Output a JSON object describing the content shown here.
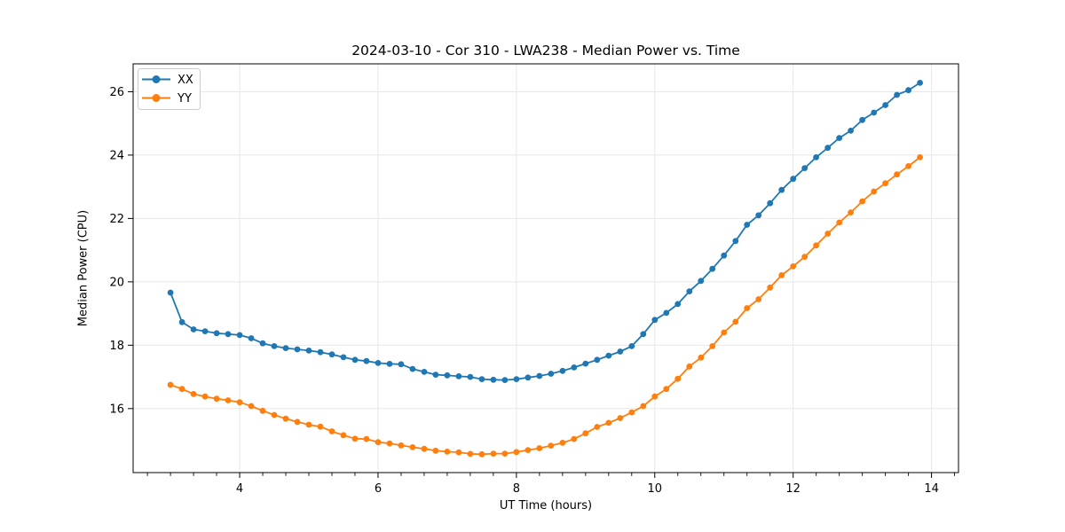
{
  "chart_data": {
    "type": "line",
    "title": "2024-03-10 - Cor 310 - LWA238 - Median Power vs. Time",
    "xlabel": "UT Time (hours)",
    "ylabel": "Median Power (CPU)",
    "xlim": [
      2.46,
      14.39
    ],
    "ylim": [
      13.98,
      26.88
    ],
    "xticks": [
      4,
      6,
      8,
      10,
      12,
      14
    ],
    "yticks": [
      16,
      18,
      20,
      22,
      24,
      26
    ],
    "x_minor_step": 0.33333,
    "grid": true,
    "legend_position": "upper left",
    "x": [
      3.0,
      3.167,
      3.333,
      3.5,
      3.667,
      3.833,
      4.0,
      4.167,
      4.333,
      4.5,
      4.667,
      4.833,
      5.0,
      5.167,
      5.333,
      5.5,
      5.667,
      5.833,
      6.0,
      6.167,
      6.333,
      6.5,
      6.667,
      6.833,
      7.0,
      7.167,
      7.333,
      7.5,
      7.667,
      7.833,
      8.0,
      8.167,
      8.333,
      8.5,
      8.667,
      8.833,
      9.0,
      9.167,
      9.333,
      9.5,
      9.667,
      9.833,
      10.0,
      10.167,
      10.333,
      10.5,
      10.667,
      10.833,
      11.0,
      11.167,
      11.333,
      11.5,
      11.667,
      11.833,
      12.0,
      12.167,
      12.333,
      12.5,
      12.667,
      12.833,
      13.0,
      13.167,
      13.333,
      13.5,
      13.667,
      13.833
    ],
    "series": [
      {
        "name": "XX",
        "color": "#1f77b4",
        "values": [
          19.66,
          18.73,
          18.5,
          18.44,
          18.38,
          18.35,
          18.32,
          18.22,
          18.06,
          17.97,
          17.91,
          17.87,
          17.83,
          17.78,
          17.71,
          17.62,
          17.54,
          17.5,
          17.44,
          17.41,
          17.4,
          17.25,
          17.16,
          17.07,
          17.05,
          17.02,
          17.0,
          16.93,
          16.91,
          16.9,
          16.93,
          16.98,
          17.03,
          17.1,
          17.19,
          17.3,
          17.42,
          17.54,
          17.67,
          17.8,
          17.97,
          18.35,
          18.8,
          19.02,
          19.3,
          19.7,
          20.03,
          20.41,
          20.83,
          21.29,
          21.8,
          22.1,
          22.48,
          22.9,
          23.25,
          23.59,
          23.93,
          24.23,
          24.54,
          24.77,
          25.11,
          25.34,
          25.58,
          25.9,
          26.05,
          26.28
        ]
      },
      {
        "name": "YY",
        "color": "#ff7f0e",
        "values": [
          16.75,
          16.62,
          16.46,
          16.38,
          16.31,
          16.26,
          16.2,
          16.08,
          15.93,
          15.8,
          15.68,
          15.58,
          15.49,
          15.43,
          15.28,
          15.16,
          15.05,
          15.04,
          14.94,
          14.9,
          14.84,
          14.78,
          14.73,
          14.67,
          14.64,
          14.62,
          14.57,
          14.56,
          14.58,
          14.58,
          14.63,
          14.69,
          14.75,
          14.83,
          14.92,
          15.04,
          15.22,
          15.42,
          15.55,
          15.7,
          15.88,
          16.08,
          16.38,
          16.62,
          16.94,
          17.33,
          17.61,
          17.97,
          18.4,
          18.74,
          19.17,
          19.45,
          19.82,
          20.21,
          20.49,
          20.79,
          21.15,
          21.52,
          21.87,
          22.19,
          22.54,
          22.85,
          23.11,
          23.39,
          23.65,
          23.93
        ]
      }
    ]
  },
  "colors": {
    "background": "#ffffff",
    "spine": "#000000",
    "grid": "#e8e8e8",
    "text": "#000000",
    "legend_border": "#cccccc",
    "series_xx": "#1f77b4",
    "series_yy": "#ff7f0e"
  }
}
